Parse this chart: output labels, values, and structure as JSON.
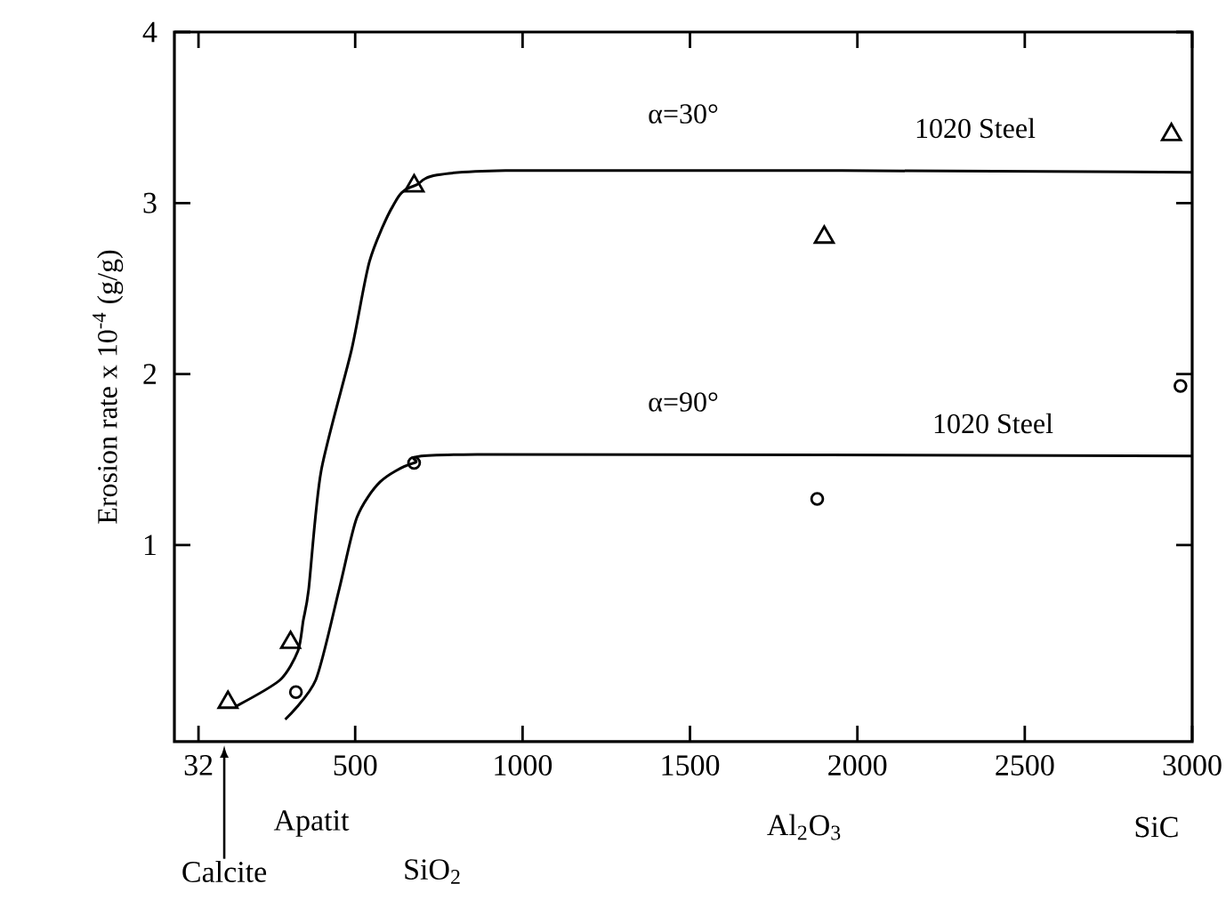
{
  "chart_data": {
    "type": "scatter",
    "ylabel": "Erosion rate x 10$^{-4}$ (g/g)",
    "xlim": [
      -40,
      3000
    ],
    "ylim": [
      -0.15,
      4
    ],
    "xticks": [
      32,
      500,
      1000,
      1500,
      2000,
      2500,
      3000
    ],
    "yticks": [
      1,
      2,
      3,
      4
    ],
    "series": [
      {
        "type": "line",
        "color": "#000000",
        "marker": "none",
        "line_style": "solid",
        "x": [
          147,
          275,
          329,
          345,
          361,
          398,
          489,
          543,
          612,
          676,
          949,
          3000
        ],
        "values": [
          0.06,
          0.21,
          0.38,
          0.56,
          0.74,
          1.43,
          2.14,
          2.66,
          2.98,
          3.1,
          3.19,
          3.18
        ]
      },
      {
        "type": "line",
        "color": "#000000",
        "marker": "none",
        "line_style": "solid",
        "x": [
          291,
          382,
          452,
          505,
          575,
          676,
          864,
          3000
        ],
        "values": [
          -0.02,
          0.21,
          0.74,
          1.16,
          1.37,
          1.48,
          1.53,
          1.52
        ]
      },
      {
        "type": "scatter",
        "color": "#000000",
        "marker": "triangle",
        "x": [
          120,
          307,
          676,
          1901,
          2938
        ],
        "values": [
          0.08,
          0.43,
          3.1,
          2.8,
          3.4
        ]
      },
      {
        "type": "scatter",
        "color": "#000000",
        "marker": "circle",
        "x": [
          323,
          676,
          1880,
          2965
        ],
        "values": [
          0.14,
          1.48,
          1.27,
          1.93
        ]
      }
    ],
    "annotations": [
      "α=30°",
      "1020 Steel",
      "α=90°",
      "1020 Steel",
      "Calcite",
      "Apatit",
      "SiO$_{2}$",
      "Al$_{2}$O$_{3}$",
      "SiC"
    ]
  }
}
